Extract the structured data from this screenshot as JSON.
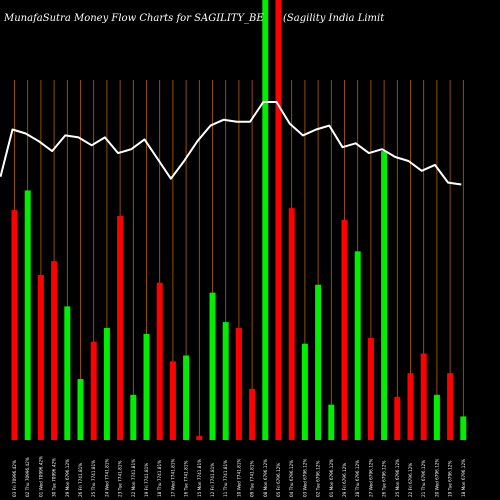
{
  "chart_data": {
    "type": "bar",
    "title_left": "MunafaSutra  Money Flow  Charts for SAGILITY_BE",
    "title_right": "(Sagility India  Limit",
    "colors": {
      "background": "#000000",
      "up": "#00ee00",
      "down": "#ff0000",
      "line": "#ffffff",
      "grid": "#b8600b"
    },
    "ylim": [
      0,
      100
    ],
    "bars": [
      {
        "label": "03 Fri 70996.42%",
        "value": 58.5,
        "direction": "down"
      },
      {
        "label": "02 Thu 70996.42%",
        "value": 63.5,
        "direction": "up"
      },
      {
        "label": "01 Wed 70996.42%",
        "value": 42.0,
        "direction": "down"
      },
      {
        "label": "30 Tue 70996.42%",
        "value": 45.5,
        "direction": "down"
      },
      {
        "label": "29 Mon 6796.12%",
        "value": 34.0,
        "direction": "up"
      },
      {
        "label": "26 Fri 7741.81%",
        "value": 15.5,
        "direction": "up"
      },
      {
        "label": "25 Thu 7741.81%",
        "value": 25.0,
        "direction": "down"
      },
      {
        "label": "24 Wed 7741.81%",
        "value": 28.5,
        "direction": "up"
      },
      {
        "label": "23 Tue 7741.81%",
        "value": 57.0,
        "direction": "down"
      },
      {
        "label": "22 Mon 7741.81%",
        "value": 11.5,
        "direction": "up"
      },
      {
        "label": "19 Fri 7741.81%",
        "value": 27.0,
        "direction": "up"
      },
      {
        "label": "18 Thu 7741.81%",
        "value": 40.0,
        "direction": "down"
      },
      {
        "label": "17 Wed 7741.81%",
        "value": 20.0,
        "direction": "down"
      },
      {
        "label": "16 Tue 7741.81%",
        "value": 21.5,
        "direction": "up"
      },
      {
        "label": "15 Mon 7741.81%",
        "value": 1.0,
        "direction": "down"
      },
      {
        "label": "12 Fri 7741.81%",
        "value": 37.5,
        "direction": "up"
      },
      {
        "label": "11 Thu 7741.81%",
        "value": 30.0,
        "direction": "up"
      },
      {
        "label": "10 Wed 7741.81%",
        "value": 28.5,
        "direction": "down"
      },
      {
        "label": "09 Tue 7741.81%",
        "value": 13.0,
        "direction": "down"
      },
      {
        "label": "08 Mon 6796.12%",
        "value": 100.0,
        "direction": "up"
      },
      {
        "label": "05 Fri 6796.12%",
        "value": 100.0,
        "direction": "down"
      },
      {
        "label": "04 Thu 6796.12%",
        "value": 59.0,
        "direction": "down"
      },
      {
        "label": "03 Wed 6796.12%",
        "value": 24.5,
        "direction": "up"
      },
      {
        "label": "02 Tue 6796.12%",
        "value": 39.5,
        "direction": "up"
      },
      {
        "label": "01 Mon 6796.12%",
        "value": 9.0,
        "direction": "up"
      },
      {
        "label": "29 Fri 6796.12%",
        "value": 56.0,
        "direction": "down"
      },
      {
        "label": "28 Thu 6796.12%",
        "value": 48.0,
        "direction": "up"
      },
      {
        "label": "27 Wed 6796.12%",
        "value": 26.0,
        "direction": "down"
      },
      {
        "label": "26 Tue 6796.12%",
        "value": 73.5,
        "direction": "up"
      },
      {
        "label": "25 Mon 6796.12%",
        "value": 11.0,
        "direction": "down"
      },
      {
        "label": "22 Fri 6796.12%",
        "value": 17.0,
        "direction": "down"
      },
      {
        "label": "21 Thu 6796.12%",
        "value": 22.0,
        "direction": "down"
      },
      {
        "label": "20 Wed 6796.12%",
        "value": 11.5,
        "direction": "up"
      },
      {
        "label": "19 Tue 6796.12%",
        "value": 17.0,
        "direction": "down"
      },
      {
        "label": "18 Mon 6796.12%",
        "value": 6.0,
        "direction": "up"
      }
    ],
    "line_values": [
      79,
      78,
      76,
      73.5,
      77.5,
      77,
      75,
      77,
      73,
      74,
      76.5,
      71.5,
      66.5,
      71,
      76,
      80,
      81.5,
      81,
      81,
      86,
      86,
      80.5,
      77.5,
      79,
      80,
      74.5,
      75.5,
      73,
      74,
      72,
      71,
      68.5,
      70,
      65.5,
      65
    ]
  }
}
